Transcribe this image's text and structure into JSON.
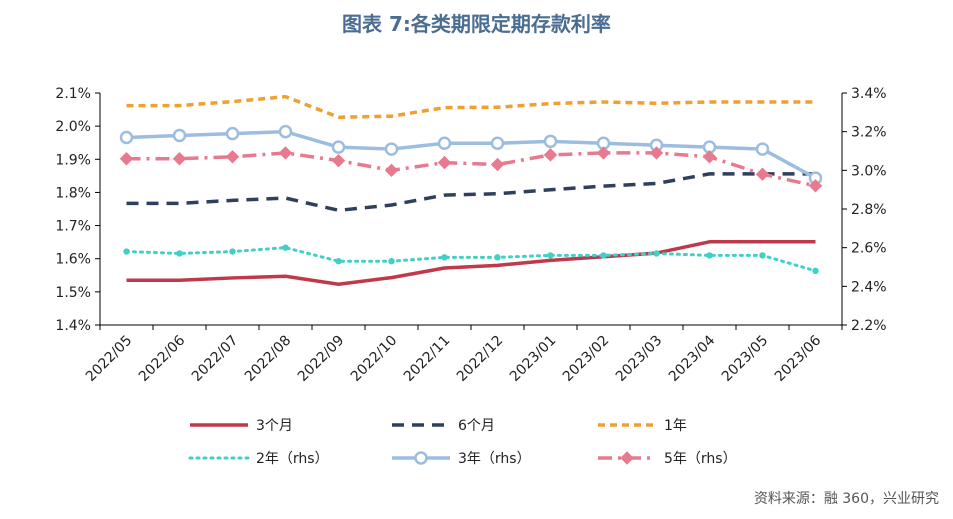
{
  "chart_title": "图表 7:各类期限定期存款利率",
  "source_note": "资料来源：融 360，兴业研究",
  "chart_data": {
    "type": "line",
    "categories": [
      "2022/05",
      "2022/06",
      "2022/07",
      "2022/08",
      "2022/09",
      "2022/10",
      "2022/11",
      "2022/12",
      "2023/01",
      "2023/02",
      "2023/03",
      "2023/04",
      "2023/05",
      "2023/06"
    ],
    "y_left": {
      "ticks": [
        "1.4%",
        "1.5%",
        "1.6%",
        "1.7%",
        "1.8%",
        "1.9%",
        "2.0%",
        "2.1%"
      ],
      "range": [
        1.4,
        2.1
      ]
    },
    "y_right": {
      "ticks": [
        "2.2%",
        "2.4%",
        "2.6%",
        "2.8%",
        "3.0%",
        "3.2%",
        "3.4%"
      ],
      "range": [
        2.2,
        3.4
      ]
    },
    "grid": false,
    "legend_position": "bottom",
    "series": [
      {
        "name": "3个月",
        "axis": "left",
        "style": "solid",
        "color": "#c0394a",
        "values": [
          1.535,
          1.535,
          1.542,
          1.547,
          1.523,
          1.543,
          1.572,
          1.58,
          1.595,
          1.606,
          1.617,
          1.651,
          1.651,
          1.651
        ]
      },
      {
        "name": "6个月",
        "axis": "left",
        "style": "dash",
        "color": "#2f3f5c",
        "values": [
          1.767,
          1.767,
          1.776,
          1.783,
          1.746,
          1.762,
          1.792,
          1.796,
          1.808,
          1.819,
          1.827,
          1.856,
          1.856,
          1.856
        ]
      },
      {
        "name": "1年",
        "axis": "left",
        "style": "dash-short",
        "color": "#f0a030",
        "values": [
          2.062,
          2.062,
          2.074,
          2.089,
          2.027,
          2.03,
          2.056,
          2.057,
          2.068,
          2.073,
          2.069,
          2.073,
          2.073,
          2.073
        ]
      },
      {
        "name": "2年（rhs）",
        "axis": "right",
        "style": "dot",
        "color": "#40d0c8",
        "values": [
          2.58,
          2.57,
          2.58,
          2.6,
          2.53,
          2.53,
          2.55,
          2.55,
          2.56,
          2.56,
          2.57,
          2.56,
          2.56,
          2.48
        ]
      },
      {
        "name": "3年（rhs）",
        "axis": "right",
        "style": "solid-diamond",
        "color": "#9dbde0",
        "values": [
          3.17,
          3.18,
          3.19,
          3.2,
          3.12,
          3.11,
          3.14,
          3.14,
          3.15,
          3.14,
          3.13,
          3.12,
          3.11,
          2.96
        ]
      },
      {
        "name": "5年（rhs）",
        "axis": "right",
        "style": "dashdot-diamond",
        "color": "#e87a90",
        "values": [
          3.06,
          3.06,
          3.07,
          3.09,
          3.05,
          3.0,
          3.04,
          3.03,
          3.08,
          3.09,
          3.09,
          3.07,
          2.98,
          2.92
        ]
      }
    ]
  }
}
